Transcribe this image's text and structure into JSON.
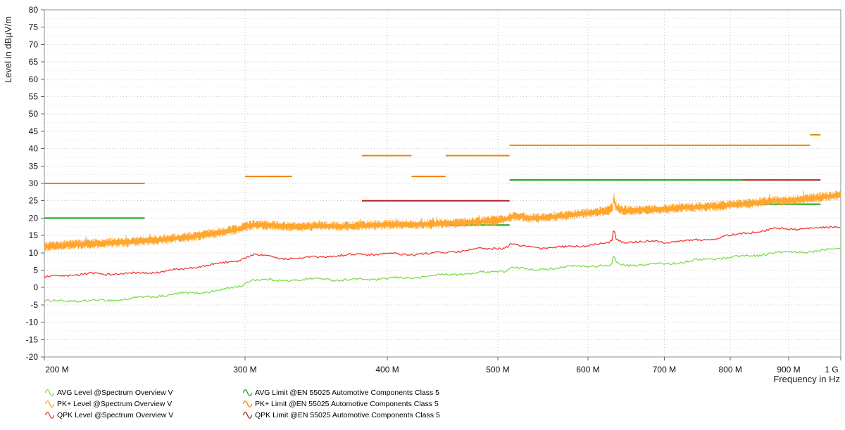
{
  "chart_data": {
    "type": "line",
    "xlabel": "Frequency in Hz",
    "ylabel": "Level in dBµV/m",
    "x_scale": "log",
    "xlim_mhz": [
      200,
      1000
    ],
    "x_ticks": [
      {
        "mhz": 200,
        "label": "200 M"
      },
      {
        "mhz": 300,
        "label": "300 M"
      },
      {
        "mhz": 400,
        "label": "400 M"
      },
      {
        "mhz": 500,
        "label": "500 M"
      },
      {
        "mhz": 600,
        "label": "600 M"
      },
      {
        "mhz": 700,
        "label": "700 M"
      },
      {
        "mhz": 800,
        "label": "800 M"
      },
      {
        "mhz": 900,
        "label": "900 M"
      },
      {
        "mhz": 1000,
        "label": "1 G"
      }
    ],
    "ylim": [
      -20,
      80
    ],
    "y_ticks": [
      80,
      75,
      70,
      65,
      60,
      55,
      50,
      45,
      40,
      35,
      30,
      25,
      20,
      15,
      10,
      5,
      0,
      -5,
      -10,
      -15,
      -20
    ],
    "y_minor_step": 2.5,
    "grid": {
      "style": "dotted",
      "major_color": "#c9c9c9",
      "minor_color": "#e2e2e2"
    },
    "axis_color": "#8c8c8c",
    "tick_color": "#666666",
    "traces": [
      {
        "name": "AVG Level @Spectrum Overview V",
        "color": "#7ddd4a",
        "style": "thin",
        "noise_db": 0.3,
        "points": [
          [
            200,
            -4.2
          ],
          [
            215,
            -3.7
          ],
          [
            230,
            -3.3
          ],
          [
            245,
            -3
          ],
          [
            258,
            -2.4
          ],
          [
            272,
            -1.6
          ],
          [
            286,
            -0.6
          ],
          [
            298,
            0.9
          ],
          [
            304,
            2.6
          ],
          [
            310,
            2.3
          ],
          [
            322,
            2
          ],
          [
            336,
            1.9
          ],
          [
            350,
            2.3
          ],
          [
            364,
            2.1
          ],
          [
            378,
            2.5
          ],
          [
            392,
            2.8
          ],
          [
            406,
            2.9
          ],
          [
            420,
            2.8
          ],
          [
            436,
            3.1
          ],
          [
            452,
            3.4
          ],
          [
            468,
            3.8
          ],
          [
            484,
            4.3
          ],
          [
            500,
            4.9
          ],
          [
            509,
            5.2
          ],
          [
            513,
            6.1
          ],
          [
            524,
            5.7
          ],
          [
            538,
            5.3
          ],
          [
            554,
            5.5
          ],
          [
            570,
            5.6
          ],
          [
            586,
            5.8
          ],
          [
            602,
            6
          ],
          [
            616,
            6.1
          ],
          [
            626,
            5.7
          ],
          [
            630,
            6.8
          ],
          [
            632,
            9.7
          ],
          [
            635,
            7
          ],
          [
            644,
            6.6
          ],
          [
            660,
            6.7
          ],
          [
            680,
            6.9
          ],
          [
            700,
            7.1
          ],
          [
            724,
            7.4
          ],
          [
            748,
            7.7
          ],
          [
            772,
            8
          ],
          [
            796,
            8.4
          ],
          [
            820,
            8.8
          ],
          [
            846,
            9.4
          ],
          [
            872,
            10.2
          ],
          [
            898,
            10.4
          ],
          [
            924,
            10.5
          ],
          [
            950,
            10.6
          ],
          [
            976,
            10.9
          ],
          [
            1000,
            11.4
          ]
        ]
      },
      {
        "name": "PK+ Level @Spectrum Overview V",
        "color": "#ffa62e",
        "style": "band",
        "noise_db": 1.0,
        "points": [
          [
            200,
            11.8
          ],
          [
            212,
            12.4
          ],
          [
            226,
            12.8
          ],
          [
            240,
            13.2
          ],
          [
            254,
            13.8
          ],
          [
            268,
            14.6
          ],
          [
            282,
            15.6
          ],
          [
            296,
            16.9
          ],
          [
            304,
            18
          ],
          [
            312,
            18.1
          ],
          [
            322,
            17.6
          ],
          [
            336,
            17.5
          ],
          [
            350,
            17.8
          ],
          [
            364,
            17.6
          ],
          [
            378,
            17.8
          ],
          [
            392,
            18
          ],
          [
            406,
            18.2
          ],
          [
            420,
            18.2
          ],
          [
            436,
            18.3
          ],
          [
            452,
            18.5
          ],
          [
            468,
            18.7
          ],
          [
            484,
            19
          ],
          [
            500,
            19.3
          ],
          [
            509,
            19.7
          ],
          [
            513,
            20.4
          ],
          [
            522,
            20.5
          ],
          [
            532,
            20
          ],
          [
            546,
            20.1
          ],
          [
            560,
            20.4
          ],
          [
            576,
            20.8
          ],
          [
            592,
            21.2
          ],
          [
            608,
            21.7
          ],
          [
            620,
            22
          ],
          [
            628,
            22.3
          ],
          [
            631,
            23.5
          ],
          [
            632,
            26.3
          ],
          [
            634,
            23.4
          ],
          [
            642,
            22.3
          ],
          [
            656,
            22.2
          ],
          [
            672,
            22.4
          ],
          [
            688,
            22.5
          ],
          [
            704,
            22.7
          ],
          [
            726,
            23
          ],
          [
            748,
            23.2
          ],
          [
            770,
            23.4
          ],
          [
            792,
            23.7
          ],
          [
            815,
            24
          ],
          [
            838,
            24.3
          ],
          [
            862,
            24.8
          ],
          [
            880,
            25
          ],
          [
            902,
            25.2
          ],
          [
            926,
            25.5
          ],
          [
            950,
            25.8
          ],
          [
            974,
            26.2
          ],
          [
            1000,
            26.8
          ]
        ]
      },
      {
        "name": "QPK Level @Spectrum Overview V",
        "color": "#ee3b33",
        "style": "thin",
        "noise_db": 0.3,
        "points": [
          [
            200,
            2.9
          ],
          [
            214,
            3.4
          ],
          [
            228,
            3.9
          ],
          [
            242,
            4.3
          ],
          [
            256,
            4.9
          ],
          [
            270,
            5.6
          ],
          [
            284,
            6.5
          ],
          [
            296,
            7.5
          ],
          [
            304,
            9.5
          ],
          [
            312,
            9.2
          ],
          [
            324,
            8.8
          ],
          [
            338,
            8.7
          ],
          [
            352,
            8.9
          ],
          [
            366,
            8.9
          ],
          [
            378,
            9.3
          ],
          [
            392,
            9.5
          ],
          [
            406,
            9.7
          ],
          [
            420,
            9.8
          ],
          [
            436,
            10.1
          ],
          [
            452,
            10.3
          ],
          [
            468,
            10.5
          ],
          [
            484,
            10.8
          ],
          [
            500,
            11.1
          ],
          [
            509,
            11.4
          ],
          [
            513,
            12.2
          ],
          [
            524,
            11.9
          ],
          [
            538,
            11.6
          ],
          [
            554,
            11.7
          ],
          [
            570,
            11.9
          ],
          [
            586,
            12.1
          ],
          [
            602,
            12.3
          ],
          [
            616,
            12.5
          ],
          [
            626,
            12.6
          ],
          [
            630,
            13.4
          ],
          [
            632,
            16.8
          ],
          [
            635,
            13.6
          ],
          [
            644,
            12.9
          ],
          [
            662,
            12.9
          ],
          [
            682,
            13
          ],
          [
            702,
            13.2
          ],
          [
            726,
            13.6
          ],
          [
            750,
            14
          ],
          [
            774,
            14.4
          ],
          [
            798,
            14.9
          ],
          [
            822,
            15.4
          ],
          [
            848,
            16
          ],
          [
            874,
            16.5
          ],
          [
            900,
            16.8
          ],
          [
            926,
            17
          ],
          [
            950,
            17.2
          ],
          [
            976,
            17.6
          ],
          [
            1000,
            18
          ]
        ]
      }
    ],
    "limits": [
      {
        "name": "AVG Limit @EN 55025 Automotive Components Class 5",
        "color": "#12a412",
        "segments": [
          [
            200,
            245,
            20
          ],
          [
            300,
            330,
            18
          ],
          [
            380,
            512,
            18
          ],
          [
            512,
            820,
            31
          ],
          [
            820,
            960,
            24
          ]
        ]
      },
      {
        "name": "QPK Limit @EN 55025 Automotive Components Class 5",
        "color": "#b22424",
        "segments": [
          [
            380,
            512,
            25
          ],
          [
            820,
            960,
            31
          ]
        ]
      },
      {
        "name": "PK+ Limit @EN 55025 Automotive Components Class 5",
        "color": "#ef8200",
        "segments": [
          [
            200,
            245,
            30
          ],
          [
            300,
            330,
            32
          ],
          [
            380,
            420,
            38
          ],
          [
            420,
            450,
            32
          ],
          [
            450,
            512,
            38
          ],
          [
            512,
            940,
            41
          ],
          [
            940,
            960,
            44
          ]
        ]
      }
    ]
  },
  "legend": {
    "columns": [
      {
        "items": [
          {
            "label": "AVG Level @Spectrum Overview V",
            "color": "#7ddd4a",
            "icon": "sine-wave-icon"
          },
          {
            "label": "PK+ Level @Spectrum Overview V",
            "color": "#ffa62e",
            "icon": "sine-wave-icon"
          },
          {
            "label": "QPK Level @Spectrum Overview V",
            "color": "#ee3b33",
            "icon": "sine-wave-icon"
          }
        ]
      },
      {
        "items": [
          {
            "label": "AVG Limit @EN 55025 Automotive Components Class 5",
            "color": "#12a412",
            "icon": "sine-wave-icon"
          },
          {
            "label": "PK+ Limit @EN 55025 Automotive Components Class 5",
            "color": "#ef8200",
            "icon": "sine-wave-icon"
          },
          {
            "label": "QPK Limit @EN 55025 Automotive Components Class 5",
            "color": "#b22424",
            "icon": "sine-wave-icon"
          }
        ]
      }
    ]
  }
}
